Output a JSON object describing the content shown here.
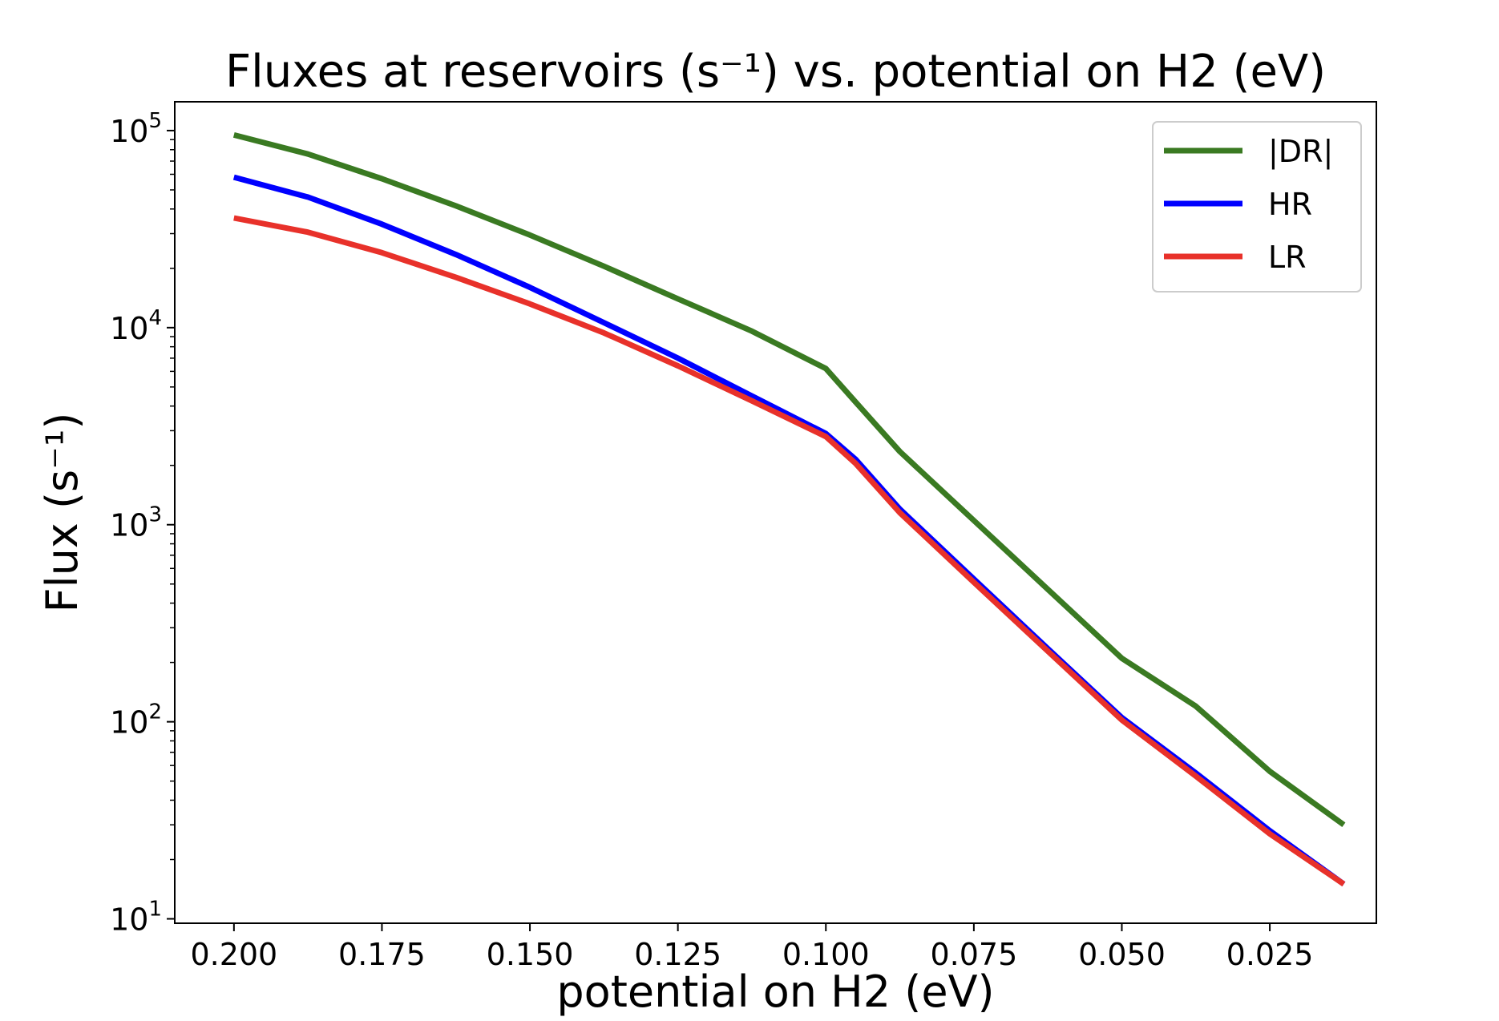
{
  "chart_data": {
    "type": "line",
    "title": "Fluxes at reservoirs (s⁻¹) vs. potential on H2 (eV)",
    "xlabel": "potential on H2 (eV)",
    "ylabel": "Flux (s⁻¹)",
    "x_inverted": true,
    "xlim": [
      0.21,
      0.007
    ],
    "ylim": [
      9.5,
      140000
    ],
    "yscale": "log",
    "grid": false,
    "legend_position": "top-right",
    "x_ticks": [
      0.2,
      0.175,
      0.15,
      0.125,
      0.1,
      0.075,
      0.05,
      0.025
    ],
    "x_tick_labels": [
      "0.200",
      "0.175",
      "0.150",
      "0.125",
      "0.100",
      "0.075",
      "0.050",
      "0.025"
    ],
    "y_ticks": [
      10,
      100,
      1000,
      10000,
      100000
    ],
    "y_tick_labels": [
      {
        "base": "10",
        "exp": "1"
      },
      {
        "base": "10",
        "exp": "2"
      },
      {
        "base": "10",
        "exp": "3"
      },
      {
        "base": "10",
        "exp": "4"
      },
      {
        "base": "10",
        "exp": "5"
      }
    ],
    "x": [
      0.2,
      0.1875,
      0.175,
      0.1625,
      0.15,
      0.1375,
      0.125,
      0.1125,
      0.1,
      0.095,
      0.0875,
      0.075,
      0.0625,
      0.05,
      0.0375,
      0.025,
      0.0125
    ],
    "series": [
      {
        "name": "|DR|",
        "color": "#3a7a22",
        "values": [
          95000,
          76000,
          57000,
          41500,
          29500,
          20500,
          14000,
          9600,
          6200,
          4200,
          2350,
          1050,
          470,
          210,
          120,
          56,
          30
        ]
      },
      {
        "name": "HR",
        "color": "#0000ff",
        "values": [
          58000,
          46000,
          33500,
          23500,
          16000,
          10600,
          7000,
          4500,
          2900,
          2150,
          1200,
          530,
          235,
          105,
          55,
          28,
          15
        ]
      },
      {
        "name": "LR",
        "color": "#e8312a",
        "values": [
          36000,
          30500,
          24000,
          18000,
          13200,
          9400,
          6400,
          4250,
          2800,
          2050,
          1150,
          510,
          228,
          102,
          53,
          27,
          15
        ]
      }
    ]
  }
}
